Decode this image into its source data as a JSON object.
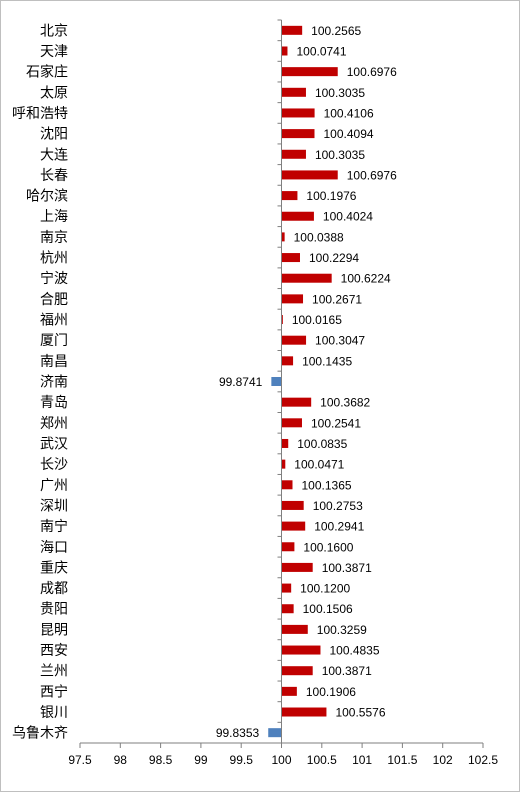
{
  "chart_data": {
    "type": "bar",
    "orientation": "horizontal",
    "title": "",
    "xlabel": "",
    "ylabel": "",
    "xlim": [
      97.5,
      102.5
    ],
    "x_ticks": [
      "97.5",
      "98",
      "98.5",
      "99",
      "99.5",
      "100",
      "100.5",
      "101",
      "101.5",
      "102",
      "102.5"
    ],
    "baseline": 100,
    "grid": false,
    "legend": "none",
    "colors": {
      "above": "#c00000",
      "below": "#4f81bd",
      "axis": "#7f7f7f",
      "text": "#000000"
    },
    "categories": [
      "北京",
      "天津",
      "石家庄",
      "太原",
      "呼和浩特",
      "沈阳",
      "大连",
      "长春",
      "哈尔滨",
      "上海",
      "南京",
      "杭州",
      "宁波",
      "合肥",
      "福州",
      "厦门",
      "南昌",
      "济南",
      "青岛",
      "郑州",
      "武汉",
      "长沙",
      "广州",
      "深圳",
      "南宁",
      "海口",
      "重庆",
      "成都",
      "贵阳",
      "昆明",
      "西安",
      "兰州",
      "西宁",
      "银川",
      "乌鲁木齐"
    ],
    "values": [
      100.2565,
      100.0741,
      100.6976,
      100.3035,
      100.4106,
      100.4094,
      100.3035,
      100.6976,
      100.1976,
      100.4024,
      100.0388,
      100.2294,
      100.6224,
      100.2671,
      100.0165,
      100.3047,
      100.1435,
      99.8741,
      100.3682,
      100.2541,
      100.0835,
      100.0471,
      100.1365,
      100.2753,
      100.2941,
      100.16,
      100.3871,
      100.12,
      100.1506,
      100.3259,
      100.4835,
      100.3871,
      100.1906,
      100.5576,
      99.8353
    ],
    "data_labels": [
      "100.2565",
      "100.0741",
      "100.6976",
      "100.3035",
      "100.4106",
      "100.4094",
      "100.3035",
      "100.6976",
      "100.1976",
      "100.4024",
      "100.0388",
      "100.2294",
      "100.6224",
      "100.2671",
      "100.0165",
      "100.3047",
      "100.1435",
      "99.8741",
      "100.3682",
      "100.2541",
      "100.0835",
      "100.0471",
      "100.1365",
      "100.2753",
      "100.2941",
      "100.1600",
      "100.3871",
      "100.1200",
      "100.1506",
      "100.3259",
      "100.4835",
      "100.3871",
      "100.1906",
      "100.5576",
      "99.8353"
    ]
  }
}
